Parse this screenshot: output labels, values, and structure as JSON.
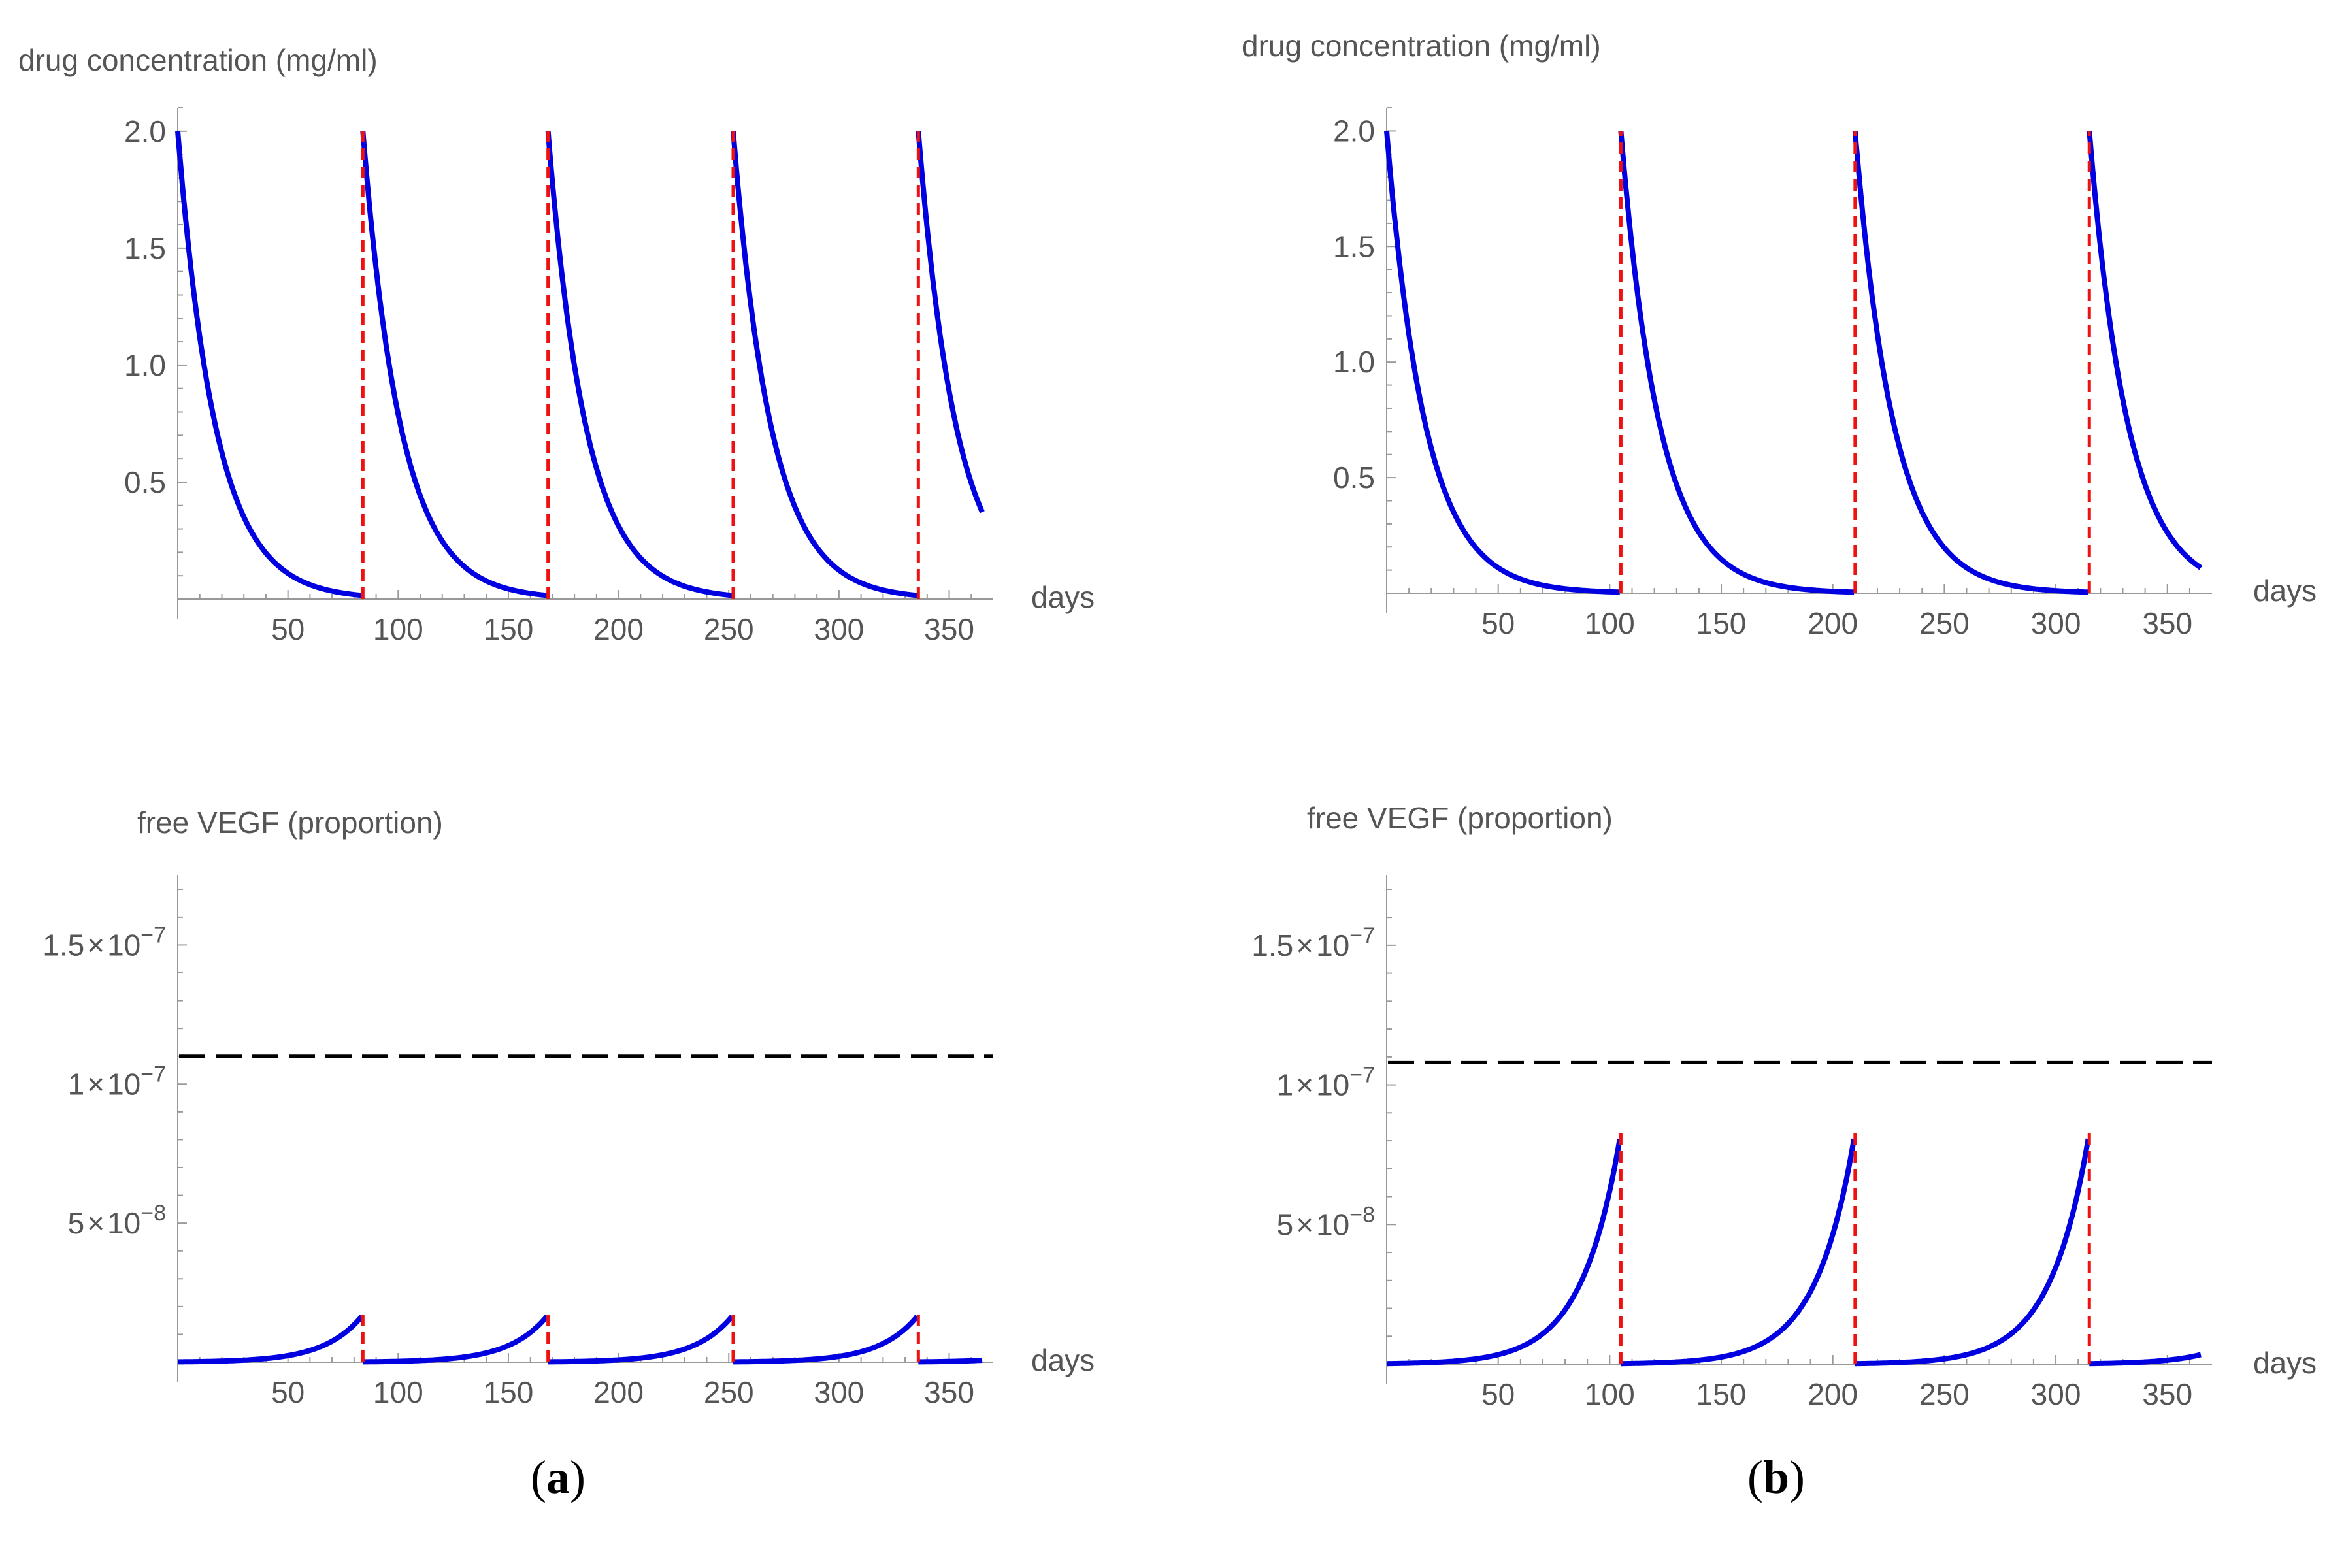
{
  "figure": {
    "panel_labels": [
      {
        "open": "(",
        "letter": "a",
        "close": ")"
      },
      {
        "open": "(",
        "letter": "b",
        "close": ")"
      }
    ]
  },
  "colors": {
    "curve": "#0000e0",
    "injection": "#ee1111",
    "threshold": "#000000",
    "axis": "#999999",
    "text": "#555555"
  },
  "chart_data": [
    {
      "id": "a-top",
      "type": "line",
      "panel": "a",
      "title": "drug concentration (mg/ml)",
      "xlabel": "days",
      "ylabel": "drug concentration (mg/ml)",
      "xlim": [
        0,
        370
      ],
      "ylim": [
        0,
        2.1
      ],
      "x_ticks": [
        50,
        100,
        150,
        200,
        250,
        300,
        350
      ],
      "x_tick_labels": [
        "50",
        "100",
        "150",
        "200",
        "250",
        "300",
        "350"
      ],
      "y_ticks": [
        0.5,
        1.0,
        1.5,
        2.0
      ],
      "y_tick_labels": [
        "0.5",
        "1.0",
        "1.5",
        "2.0"
      ],
      "injection_days": [
        84,
        168,
        252,
        336
      ],
      "series": [
        {
          "name": "drug concentration",
          "kind": "decay",
          "peak": 2.0,
          "period": 84,
          "decay_rate": 0.058,
          "end_day": 365
        }
      ]
    },
    {
      "id": "b-top",
      "type": "line",
      "panel": "b",
      "title": "drug concentration (mg/ml)",
      "xlabel": "days",
      "ylabel": "drug concentration (mg/ml)",
      "xlim": [
        0,
        370
      ],
      "ylim": [
        0,
        2.1
      ],
      "x_ticks": [
        50,
        100,
        150,
        200,
        250,
        300,
        350
      ],
      "x_tick_labels": [
        "50",
        "100",
        "150",
        "200",
        "250",
        "300",
        "350"
      ],
      "y_ticks": [
        0.5,
        1.0,
        1.5,
        2.0
      ],
      "y_tick_labels": [
        "0.5",
        "1.0",
        "1.5",
        "2.0"
      ],
      "injection_days": [
        105,
        210,
        315
      ],
      "series": [
        {
          "name": "drug concentration",
          "kind": "decay",
          "peak": 2.0,
          "period": 105,
          "decay_rate": 0.058,
          "end_day": 365
        }
      ]
    },
    {
      "id": "a-bottom",
      "type": "line",
      "panel": "a",
      "title": "free VEGF (proportion)",
      "xlabel": "days",
      "ylabel": "free VEGF (proportion)",
      "xlim": [
        0,
        370
      ],
      "ylim": [
        0,
        1.75e-07
      ],
      "x_ticks": [
        50,
        100,
        150,
        200,
        250,
        300,
        350
      ],
      "x_tick_labels": [
        "50",
        "100",
        "150",
        "200",
        "250",
        "300",
        "350"
      ],
      "y_ticks": [
        5e-08,
        1e-07,
        1.5e-07
      ],
      "y_tick_labels": [
        {
          "mantissa": "5",
          "times": "×",
          "base": "10",
          "exponent": "−8"
        },
        {
          "mantissa": "1",
          "times": "×",
          "base": "10",
          "exponent": "−7"
        },
        {
          "mantissa": "1.5",
          "times": "×",
          "base": "10",
          "exponent": "−7"
        }
      ],
      "threshold": 1.1e-07,
      "injection_days": [
        84,
        168,
        252,
        336
      ],
      "series": [
        {
          "name": "free VEGF",
          "kind": "growth",
          "peak": 1.7e-08,
          "period": 84,
          "growth_rate": 0.058,
          "end_day": 365
        }
      ]
    },
    {
      "id": "b-bottom",
      "type": "line",
      "panel": "b",
      "title": "free VEGF (proportion)",
      "xlabel": "days",
      "ylabel": "free VEGF (proportion)",
      "xlim": [
        0,
        370
      ],
      "ylim": [
        0,
        1.75e-07
      ],
      "x_ticks": [
        50,
        100,
        150,
        200,
        250,
        300,
        350
      ],
      "x_tick_labels": [
        "50",
        "100",
        "150",
        "200",
        "250",
        "300",
        "350"
      ],
      "y_ticks": [
        5e-08,
        1e-07,
        1.5e-07
      ],
      "y_tick_labels": [
        {
          "mantissa": "5",
          "times": "×",
          "base": "10",
          "exponent": "−8"
        },
        {
          "mantissa": "1",
          "times": "×",
          "base": "10",
          "exponent": "−7"
        },
        {
          "mantissa": "1.5",
          "times": "×",
          "base": "10",
          "exponent": "−7"
        }
      ],
      "threshold": 1.08e-07,
      "injection_days": [
        105,
        210,
        315
      ],
      "series": [
        {
          "name": "free VEGF",
          "kind": "growth",
          "peak": 8.3e-08,
          "period": 105,
          "growth_rate": 0.058,
          "end_day": 365
        }
      ]
    }
  ]
}
